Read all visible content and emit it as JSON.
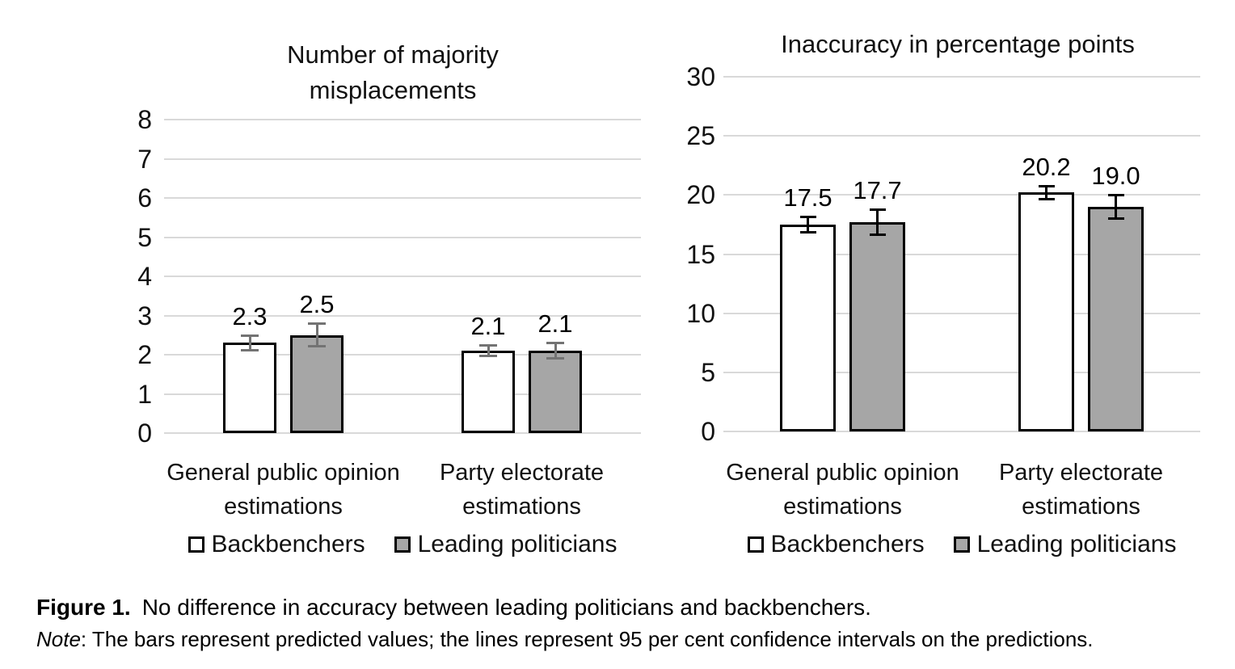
{
  "figure": {
    "caption_label": "Figure 1.",
    "caption_text": "No difference in accuracy between leading politicians and backbenchers.",
    "note_label": "Note",
    "note_text": ": The bars represent predicted values; the lines represent 95 per cent confidence intervals on the predictions."
  },
  "colors": {
    "backbenchers_fill": "#ffffff",
    "leading_politicians_fill": "#a6a6a6",
    "bar_border": "#000000",
    "gridline": "#d9d9d9",
    "left_chart_error": "#737373",
    "right_chart_error": "#000000",
    "text": "#111111"
  },
  "legend": {
    "items": [
      {
        "label": "Backbenchers",
        "fill": "#ffffff"
      },
      {
        "label": "Leading politicians",
        "fill": "#a6a6a6"
      }
    ]
  },
  "chart_data": [
    {
      "type": "bar",
      "title": "Number of majority misplacements",
      "title_lines": [
        "Number of majority",
        "misplacements"
      ],
      "categories": [
        "General public opinion estimations",
        "Party electorate estimations"
      ],
      "category_lines": [
        [
          "General public opinion",
          "estimations"
        ],
        [
          "Party electorate",
          "estimations"
        ]
      ],
      "series": [
        {
          "name": "Backbenchers",
          "values": [
            2.3,
            2.1
          ],
          "value_labels": [
            "2.3",
            "2.1"
          ],
          "ci_low": [
            2.1,
            1.95
          ],
          "ci_high": [
            2.5,
            2.25
          ],
          "fill": "#ffffff"
        },
        {
          "name": "Leading politicians",
          "values": [
            2.5,
            2.1
          ],
          "value_labels": [
            "2.5",
            "2.1"
          ],
          "ci_low": [
            2.2,
            1.9
          ],
          "ci_high": [
            2.8,
            2.3
          ],
          "fill": "#a6a6a6"
        }
      ],
      "ylim": [
        0,
        8
      ],
      "yticks": [
        0,
        1,
        2,
        3,
        4,
        5,
        6,
        7,
        8
      ],
      "grid": true,
      "legend_position": "bottom",
      "error_color": "#737373",
      "note": "error bars show 95% confidence intervals"
    },
    {
      "type": "bar",
      "title": "Inaccuracy in percentage points",
      "title_lines": [
        "Inaccuracy in percentage points"
      ],
      "categories": [
        "General public opinion estimations",
        "Party electorate estimations"
      ],
      "category_lines": [
        [
          "General public opinion",
          "estimations"
        ],
        [
          "Party electorate",
          "estimations"
        ]
      ],
      "series": [
        {
          "name": "Backbenchers",
          "values": [
            17.5,
            20.2
          ],
          "value_labels": [
            "17.5",
            "20.2"
          ],
          "ci_low": [
            16.8,
            19.6
          ],
          "ci_high": [
            18.2,
            20.8
          ],
          "fill": "#ffffff"
        },
        {
          "name": "Leading politicians",
          "values": [
            17.7,
            19.0
          ],
          "value_labels": [
            "17.7",
            "19.0"
          ],
          "ci_low": [
            16.6,
            18.0
          ],
          "ci_high": [
            18.8,
            20.0
          ],
          "fill": "#a6a6a6"
        }
      ],
      "ylim": [
        0,
        30
      ],
      "yticks": [
        0,
        5,
        10,
        15,
        20,
        25,
        30
      ],
      "grid": true,
      "legend_position": "bottom",
      "error_color": "#000000",
      "note": "error bars show 95% confidence intervals"
    }
  ]
}
